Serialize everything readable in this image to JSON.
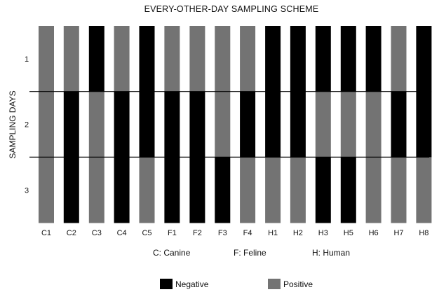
{
  "chart_data": {
    "type": "heatmap",
    "title": "EVERY-OTHER-DAY SAMPLING SCHEME",
    "ylabel": "SAMPLING DAYS",
    "xlabel": "",
    "categories": [
      "C1",
      "C2",
      "C3",
      "C4",
      "C5",
      "F1",
      "F2",
      "F3",
      "F4",
      "H1",
      "H2",
      "H3",
      "H5",
      "H6",
      "H7",
      "H8"
    ],
    "days": [
      "1",
      "2",
      "3"
    ],
    "results": [
      [
        "Positive",
        "Positive",
        "Positive"
      ],
      [
        "Positive",
        "Negative",
        "Negative"
      ],
      [
        "Negative",
        "Positive",
        "Positive"
      ],
      [
        "Positive",
        "Negative",
        "Negative"
      ],
      [
        "Negative",
        "Negative",
        "Positive"
      ],
      [
        "Positive",
        "Negative",
        "Negative"
      ],
      [
        "Positive",
        "Negative",
        "Negative"
      ],
      [
        "Positive",
        "Positive",
        "Negative"
      ],
      [
        "Positive",
        "Negative",
        "Positive"
      ],
      [
        "Negative",
        "Negative",
        "Positive"
      ],
      [
        "Negative",
        "Negative",
        "Positive"
      ],
      [
        "Negative",
        "Positive",
        "Negative"
      ],
      [
        "Negative",
        "Positive",
        "Negative"
      ],
      [
        "Negative",
        "Positive",
        "Positive"
      ],
      [
        "Positive",
        "Negative",
        "Positive"
      ],
      [
        "Negative",
        "Negative",
        "Positive"
      ]
    ],
    "groups": [
      "C: Canine",
      "F: Feline",
      "H: Human"
    ],
    "legend": [
      {
        "label": "Negative",
        "color": "#000000"
      },
      {
        "label": "Positive",
        "color": "#737373"
      }
    ],
    "grid": true
  }
}
